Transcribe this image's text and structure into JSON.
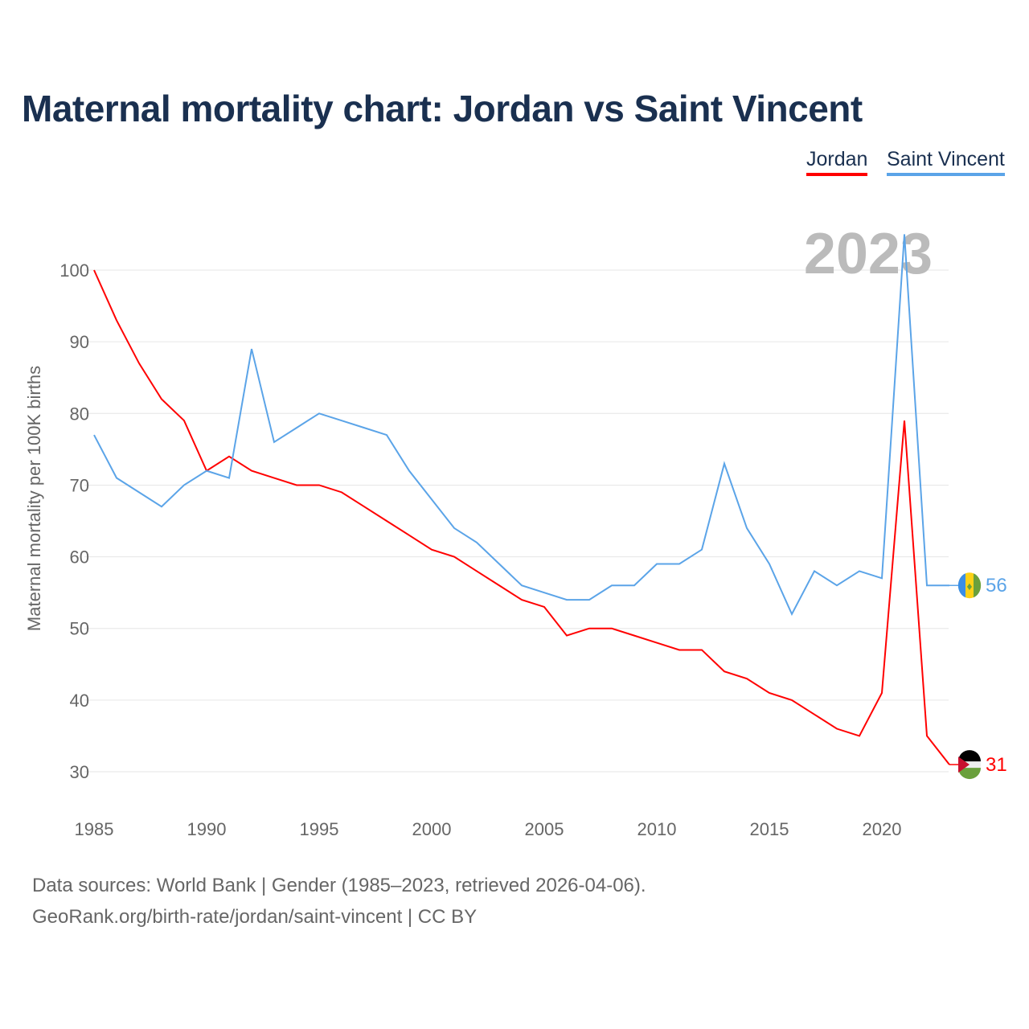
{
  "chart_data": {
    "type": "line",
    "title": "Maternal mortality chart: Jordan vs Saint Vincent",
    "ylabel": "Maternal mortality per 100K births",
    "xlabel": "",
    "year_label": "2023",
    "ylim": [
      30,
      100
    ],
    "xlim": [
      1985,
      2023
    ],
    "yticks": [
      30,
      40,
      50,
      60,
      70,
      80,
      90,
      100
    ],
    "xticks": [
      1985,
      1990,
      1995,
      2000,
      2005,
      2010,
      2015,
      2020
    ],
    "grid": true,
    "legend": "top-right",
    "x": [
      1985,
      1986,
      1987,
      1988,
      1989,
      1990,
      1991,
      1992,
      1993,
      1994,
      1995,
      1996,
      1997,
      1998,
      1999,
      2000,
      2001,
      2002,
      2003,
      2004,
      2005,
      2006,
      2007,
      2008,
      2009,
      2010,
      2011,
      2012,
      2013,
      2014,
      2015,
      2016,
      2017,
      2018,
      2019,
      2020,
      2021,
      2022,
      2023
    ],
    "series": [
      {
        "name": "Jordan",
        "color": "#ff0000",
        "end_label": "31",
        "values": [
          100,
          93,
          87,
          82,
          79,
          72,
          74,
          72,
          71,
          70,
          70,
          69,
          67,
          65,
          63,
          61,
          60,
          58,
          56,
          54,
          53,
          49,
          50,
          50,
          49,
          48,
          47,
          47,
          44,
          43,
          41,
          40,
          38,
          36,
          35,
          41,
          79,
          35,
          31
        ]
      },
      {
        "name": "Saint Vincent",
        "color": "#5ba4e8",
        "end_label": "56",
        "values": [
          77,
          71,
          69,
          67,
          70,
          72,
          71,
          89,
          76,
          78,
          80,
          79,
          78,
          77,
          72,
          68,
          64,
          62,
          59,
          56,
          55,
          54,
          54,
          56,
          56,
          59,
          59,
          61,
          73,
          64,
          59,
          52,
          58,
          56,
          58,
          57,
          105,
          56,
          56
        ]
      }
    ]
  },
  "footer": {
    "line1": "Data sources: World Bank | Gender (1985–2023, retrieved 2026-04-06).",
    "line2": "GeoRank.org/birth-rate/jordan/saint-vincent | CC BY"
  }
}
